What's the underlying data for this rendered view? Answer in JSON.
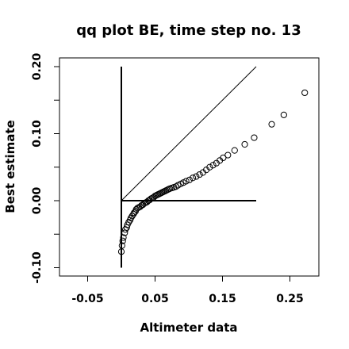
{
  "chart_data": {
    "type": "scatter",
    "title": "qq plot BE, time step no. 13",
    "xlabel": "Altimeter data",
    "ylabel": "Best estimate",
    "xlim": [
      -0.1,
      0.3
    ],
    "ylim": [
      -0.1,
      0.2
    ],
    "x_ticks": [
      -0.05,
      0.05,
      0.15,
      0.25
    ],
    "x_tick_labels": [
      "-0.05",
      "0.05",
      "0.15",
      "0.25"
    ],
    "y_ticks": [
      -0.1,
      0.0,
      0.1,
      0.2
    ],
    "y_tick_labels": [
      "-0.10",
      "0.00",
      "0.10",
      "0.20"
    ],
    "grid": false,
    "reference_lines": [
      {
        "kind": "identity",
        "x": [
          0.0,
          0.2
        ],
        "y": [
          0.0,
          0.2
        ]
      },
      {
        "kind": "horizontal",
        "x": [
          0.0,
          0.2
        ],
        "y": [
          0.0,
          0.0
        ]
      },
      {
        "kind": "vertical",
        "x": [
          0.0,
          0.0
        ],
        "y": [
          -0.1,
          0.2
        ]
      }
    ],
    "points": [
      [
        0.0,
        -0.076
      ],
      [
        0.001,
        -0.067
      ],
      [
        0.002,
        -0.06
      ],
      [
        0.003,
        -0.055
      ],
      [
        0.005,
        -0.048
      ],
      [
        0.006,
        -0.043
      ],
      [
        0.008,
        -0.04
      ],
      [
        0.009,
        -0.036
      ],
      [
        0.011,
        -0.032
      ],
      [
        0.013,
        -0.029
      ],
      [
        0.014,
        -0.026
      ],
      [
        0.016,
        -0.023
      ],
      [
        0.018,
        -0.02
      ],
      [
        0.019,
        -0.018
      ],
      [
        0.021,
        -0.016
      ],
      [
        0.022,
        -0.013
      ],
      [
        0.024,
        -0.011
      ],
      [
        0.026,
        -0.01
      ],
      [
        0.028,
        -0.009
      ],
      [
        0.03,
        -0.007
      ],
      [
        0.032,
        -0.006
      ],
      [
        0.034,
        -0.004
      ],
      [
        0.036,
        -0.003
      ],
      [
        0.038,
        -0.002
      ],
      [
        0.04,
        0.0
      ],
      [
        0.042,
        0.001
      ],
      [
        0.044,
        0.003
      ],
      [
        0.046,
        0.004
      ],
      [
        0.048,
        0.005
      ],
      [
        0.05,
        0.007
      ],
      [
        0.052,
        0.008
      ],
      [
        0.054,
        0.009
      ],
      [
        0.056,
        0.01
      ],
      [
        0.058,
        0.011
      ],
      [
        0.06,
        0.012
      ],
      [
        0.062,
        0.013
      ],
      [
        0.064,
        0.014
      ],
      [
        0.066,
        0.015
      ],
      [
        0.068,
        0.016
      ],
      [
        0.07,
        0.017
      ],
      [
        0.072,
        0.018
      ],
      [
        0.075,
        0.019
      ],
      [
        0.078,
        0.02
      ],
      [
        0.081,
        0.021
      ],
      [
        0.084,
        0.023
      ],
      [
        0.088,
        0.025
      ],
      [
        0.092,
        0.027
      ],
      [
        0.096,
        0.029
      ],
      [
        0.101,
        0.031
      ],
      [
        0.106,
        0.034
      ],
      [
        0.111,
        0.036
      ],
      [
        0.116,
        0.039
      ],
      [
        0.121,
        0.042
      ],
      [
        0.126,
        0.046
      ],
      [
        0.131,
        0.05
      ],
      [
        0.136,
        0.053
      ],
      [
        0.141,
        0.056
      ],
      [
        0.146,
        0.06
      ],
      [
        0.151,
        0.064
      ],
      [
        0.158,
        0.068
      ],
      [
        0.168,
        0.075
      ],
      [
        0.183,
        0.084
      ],
      [
        0.197,
        0.094
      ],
      [
        0.223,
        0.114
      ],
      [
        0.241,
        0.128
      ],
      [
        0.272,
        0.161
      ]
    ]
  }
}
